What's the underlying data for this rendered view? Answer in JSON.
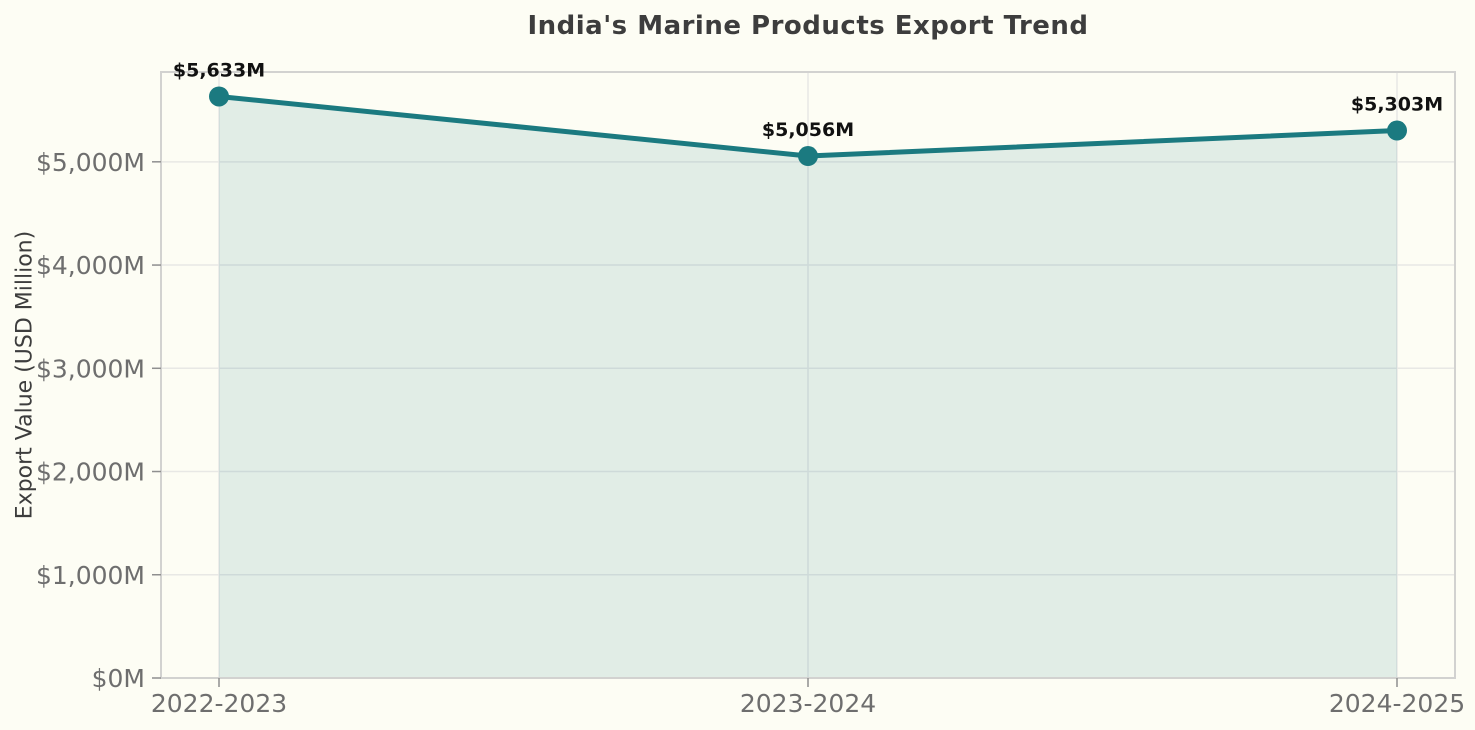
{
  "chart_data": {
    "type": "line",
    "title": "India's Marine Products Export Trend",
    "ylabel": "Export Value (USD Million)",
    "xlabel": "",
    "categories": [
      "2022-2023",
      "2023-2024",
      "2024-2025"
    ],
    "series": [
      {
        "name": "Export Value",
        "values": [
          5633,
          5056,
          5303
        ],
        "data_labels": [
          "$5,633M",
          "$5,056M",
          "$5,303M"
        ]
      }
    ],
    "y_ticks": {
      "values": [
        0,
        1000,
        2000,
        3000,
        4000,
        5000
      ],
      "labels": [
        "$0M",
        "$1,000M",
        "$2,000M",
        "$3,000M",
        "$4,000M",
        "$5,000M"
      ]
    },
    "ylim": [
      0,
      5870
    ],
    "grid": "both",
    "legend_position": "none",
    "area_fill": true,
    "colors": {
      "line": "#1b7a80",
      "marker": "#1b7a80",
      "fill": "#1b7a80",
      "fill_opacity": 0.12,
      "background": "#fdfdf4",
      "title": "#3d3d3d",
      "axis_label": "#3d3d3d",
      "tick_label": "#6e6e6e",
      "data_label": "#111111",
      "grid": "#e8e8e5",
      "spine": "#d2d2d0",
      "tick_mark": "#8f8f8f"
    }
  }
}
